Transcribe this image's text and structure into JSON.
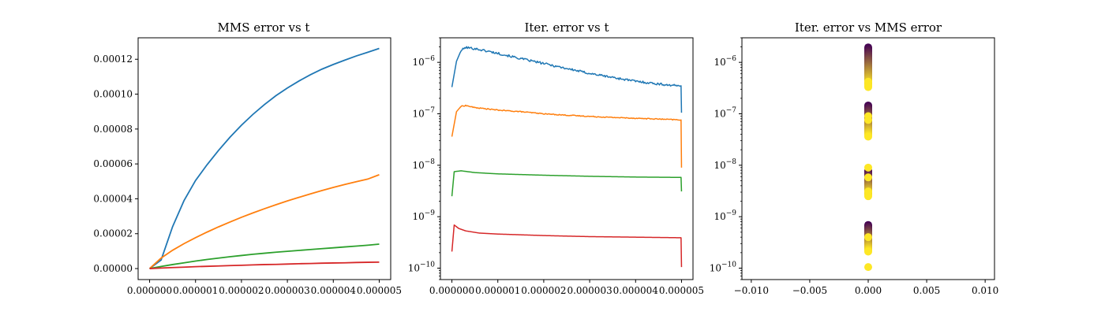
{
  "chart_data": [
    {
      "type": "line",
      "title": "MMS error vs t",
      "xlabel": "",
      "ylabel": "",
      "xlim": [
        -2.5e-07,
        5.25e-06
      ],
      "ylim": [
        -6.3e-06,
        0.0001323
      ],
      "xticks": [
        0,
        1e-06,
        2e-06,
        3e-06,
        4e-06,
        5e-06
      ],
      "xtick_labels": [
        "0.000000",
        "0.000001",
        "0.000002",
        "0.000003",
        "0.000004",
        "0.000005"
      ],
      "yticks": [
        0,
        2e-05,
        4e-05,
        6e-05,
        8e-05,
        0.0001,
        0.00012
      ],
      "ytick_labels": [
        "0.00000",
        "0.00002",
        "0.00004",
        "0.00006",
        "0.00008",
        "0.00010",
        "0.00012"
      ],
      "grid": false,
      "x": [
        0,
        2.5e-07,
        5e-07,
        7.5e-07,
        1e-06,
        1.25e-06,
        1.5e-06,
        1.75e-06,
        2e-06,
        2.25e-06,
        2.5e-06,
        2.75e-06,
        3e-06,
        3.25e-06,
        3.5e-06,
        3.75e-06,
        4e-06,
        4.25e-06,
        4.5e-06,
        4.75e-06,
        5e-06
      ],
      "series": [
        {
          "color": "#1f77b4",
          "values": [
            0,
            4.9e-06,
            2.4e-05,
            3.9e-05,
            5.05e-05,
            5.95e-05,
            6.77e-05,
            7.53e-05,
            8.22e-05,
            8.84e-05,
            9.4e-05,
            9.91e-05,
            0.0001035,
            0.0001075,
            0.0001111,
            0.0001143,
            0.000117,
            0.0001195,
            0.0001219,
            0.000124,
            0.0001262
          ]
        },
        {
          "color": "#ff7f0e",
          "values": [
            0,
            6e-06,
            1.05e-05,
            1.43e-05,
            1.77e-05,
            2.09e-05,
            2.39e-05,
            2.67e-05,
            2.94e-05,
            3.19e-05,
            3.43e-05,
            3.66e-05,
            3.88e-05,
            4.08e-05,
            4.28e-05,
            4.47e-05,
            4.65e-05,
            4.82e-05,
            4.98e-05,
            5.13e-05,
            5.38e-05
          ]
        },
        {
          "color": "#2ca02c",
          "values": [
            0,
            1.2e-06,
            2.3e-06,
            3.3e-06,
            4.3e-06,
            5.2e-06,
            6e-06,
            6.8e-06,
            7.5e-06,
            8.2e-06,
            8.8e-06,
            9.4e-06,
            9.9e-06,
            1.04e-05,
            1.09e-05,
            1.14e-05,
            1.19e-05,
            1.24e-05,
            1.29e-05,
            1.34e-05,
            1.4e-05
          ]
        },
        {
          "color": "#d62728",
          "values": [
            0,
            3e-07,
            6e-07,
            8e-07,
            1.1e-06,
            1.3e-06,
            1.5e-06,
            1.7e-06,
            1.9e-06,
            2.1e-06,
            2.3e-06,
            2.4e-06,
            2.6e-06,
            2.8e-06,
            2.9e-06,
            3.1e-06,
            3.2e-06,
            3.3e-06,
            3.5e-06,
            3.6e-06,
            3.7e-06
          ]
        }
      ]
    },
    {
      "type": "line",
      "title": "Iter. error vs t",
      "xlabel": "",
      "ylabel": "",
      "xlim": [
        -2.5e-07,
        5.25e-06
      ],
      "ylim": [
        6e-11,
        3e-06
      ],
      "yscale": "log",
      "xticks": [
        0,
        1e-06,
        2e-06,
        3e-06,
        4e-06,
        5e-06
      ],
      "xtick_labels": [
        "0.000000",
        "0.000001",
        "0.000002",
        "0.000003",
        "0.000004",
        "0.000005"
      ],
      "yticks": [
        1e-10,
        1e-09,
        1e-08,
        1e-07,
        1e-06
      ],
      "ytick_labels": [
        {
          "base": "10",
          "exp": "−10"
        },
        {
          "base": "10",
          "exp": "−9"
        },
        {
          "base": "10",
          "exp": "−8"
        },
        {
          "base": "10",
          "exp": "−7"
        },
        {
          "base": "10",
          "exp": "−6"
        }
      ],
      "grid": false,
      "series": [
        {
          "color": "#1f77b4",
          "noise": 0.05,
          "points": [
            [
              0,
              3.3e-07
            ],
            [
              1e-07,
              1.05e-06
            ],
            [
              2e-07,
              1.7e-06
            ],
            [
              3e-07,
              1.95e-06
            ],
            [
              5e-07,
              1.85e-06
            ],
            [
              1e-06,
              1.5e-06
            ],
            [
              1.5e-06,
              1.18e-06
            ],
            [
              2e-06,
              9.5e-07
            ],
            [
              2.5e-06,
              7.6e-07
            ],
            [
              3e-06,
              6.1e-07
            ],
            [
              3.5e-06,
              5.1e-07
            ],
            [
              4e-06,
              4.3e-07
            ],
            [
              4.5e-06,
              3.8e-07
            ],
            [
              4.9e-06,
              3.5e-07
            ],
            [
              4.99e-06,
              3.5e-07
            ],
            [
              5e-06,
              1.05e-07
            ]
          ]
        },
        {
          "color": "#ff7f0e",
          "noise": 0.02,
          "points": [
            [
              0,
              3.6e-08
            ],
            [
              1e-07,
              1.1e-07
            ],
            [
              2e-07,
              1.4e-07
            ],
            [
              3e-07,
              1.45e-07
            ],
            [
              5e-07,
              1.32e-07
            ],
            [
              1e-06,
              1.18e-07
            ],
            [
              1.5e-06,
              1.1e-07
            ],
            [
              2e-06,
              1e-07
            ],
            [
              2.5e-06,
              9.4e-08
            ],
            [
              3e-06,
              8.9e-08
            ],
            [
              3.5e-06,
              8.5e-08
            ],
            [
              4e-06,
              8.2e-08
            ],
            [
              4.5e-06,
              7.9e-08
            ],
            [
              4.99e-06,
              7.6e-08
            ],
            [
              5e-06,
              9e-09
            ]
          ]
        },
        {
          "color": "#2ca02c",
          "noise": 0,
          "points": [
            [
              0,
              2.5e-09
            ],
            [
              5e-08,
              7.5e-09
            ],
            [
              2e-07,
              7.8e-09
            ],
            [
              5e-07,
              7.2e-09
            ],
            [
              1e-06,
              6.8e-09
            ],
            [
              2e-06,
              6.4e-09
            ],
            [
              3e-06,
              6.1e-09
            ],
            [
              4e-06,
              5.9e-09
            ],
            [
              4.99e-06,
              5.8e-09
            ],
            [
              5e-06,
              3.1e-09
            ]
          ]
        },
        {
          "color": "#d62728",
          "noise": 0,
          "points": [
            [
              0,
              2.1e-10
            ],
            [
              5e-08,
              6.9e-10
            ],
            [
              1.5e-07,
              5.9e-10
            ],
            [
              3e-07,
              5.3e-10
            ],
            [
              6e-07,
              4.8e-10
            ],
            [
              1e-06,
              4.6e-10
            ],
            [
              2e-06,
              4.3e-10
            ],
            [
              3e-06,
              4.1e-10
            ],
            [
              4e-06,
              4e-10
            ],
            [
              4.99e-06,
              3.9e-10
            ],
            [
              5e-06,
              1.05e-10
            ]
          ]
        }
      ]
    },
    {
      "type": "scatter",
      "title": "Iter. error vs MMS error",
      "xlabel": "",
      "ylabel": "",
      "xlim": [
        -0.0108,
        0.0108
      ],
      "ylim": [
        6e-11,
        3e-06
      ],
      "yscale": "log",
      "xticks": [
        -0.01,
        -0.005,
        0,
        0.005,
        0.01
      ],
      "xtick_labels": [
        "−0.010",
        "−0.005",
        "0.000",
        "0.005",
        "0.010"
      ],
      "yticks": [
        1e-10,
        1e-09,
        1e-08,
        1e-07,
        1e-06
      ],
      "ytick_labels": [
        {
          "base": "10",
          "exp": "−10"
        },
        {
          "base": "10",
          "exp": "−9"
        },
        {
          "base": "10",
          "exp": "−8"
        },
        {
          "base": "10",
          "exp": "−7"
        },
        {
          "base": "10",
          "exp": "−6"
        }
      ],
      "grid": false,
      "colormap": "viridis",
      "series": [
        {
          "x": 0,
          "ymin": 3.3e-07,
          "ymax": 1.95e-06,
          "top_color": "#440154",
          "bottom_color": "#fde725"
        },
        {
          "x": 0,
          "ymin": 3.6e-08,
          "ymax": 1.45e-07,
          "top_color": "#440154",
          "bottom_color": "#fde725"
        },
        {
          "x": 0,
          "ymin": 2.5e-09,
          "ymax": 7.8e-09,
          "top_color": "#440154",
          "bottom_color": "#fde725"
        },
        {
          "x": 0,
          "ymin": 2.1e-10,
          "ymax": 6.9e-10,
          "top_color": "#440154",
          "bottom_color": "#fde725"
        }
      ],
      "highlight_points": [
        {
          "x": 0,
          "y": 4.2e-07,
          "color": "#fde725"
        },
        {
          "x": 0,
          "y": 3.6e-07,
          "color": "#fde725"
        },
        {
          "x": 0,
          "y": 9e-08,
          "color": "#fde725"
        },
        {
          "x": 0,
          "y": 7.6e-08,
          "color": "#fde725"
        },
        {
          "x": 0,
          "y": 9e-09,
          "color": "#fde725"
        },
        {
          "x": 0,
          "y": 5.8e-09,
          "color": "#fde725"
        },
        {
          "x": 0,
          "y": 3.1e-09,
          "color": "#fde725"
        },
        {
          "x": 0,
          "y": 4e-10,
          "color": "#fde725"
        },
        {
          "x": 0,
          "y": 1.05e-10,
          "color": "#fde725"
        }
      ]
    }
  ]
}
